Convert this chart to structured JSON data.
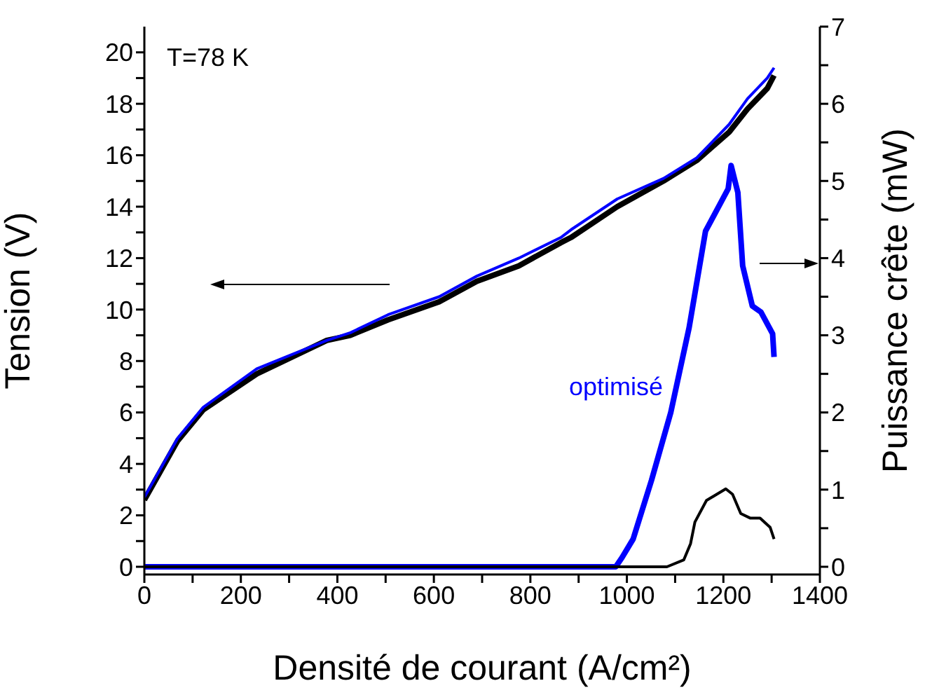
{
  "chart_data": {
    "type": "line",
    "xlabel": "Densité de courant (A/cm²)",
    "ylabel": "Tension (V)",
    "y2label": "Puissance crête (mW)",
    "annotations": [
      "T=78 K",
      "optimisé"
    ],
    "xlim": [
      0,
      1400
    ],
    "xticks": [
      0,
      {
        "value": 100,
        "label": null
      },
      200,
      {
        "value": 300,
        "label": null
      },
      400,
      {
        "value": 500,
        "label": null
      },
      600,
      {
        "value": 700,
        "label": null
      },
      800,
      {
        "value": 900,
        "label": null
      },
      1000,
      {
        "value": 1100,
        "label": null
      },
      1200,
      {
        "value": 1300,
        "label": null
      },
      1400
    ],
    "ylim": [
      -0.3,
      21
    ],
    "yticks": [
      0,
      {
        "value": 1,
        "label": null
      },
      2,
      {
        "value": 3,
        "label": null
      },
      4,
      {
        "value": 5,
        "label": null
      },
      6,
      {
        "value": 7,
        "label": null
      },
      8,
      {
        "value": 9,
        "label": null
      },
      10,
      {
        "value": 11,
        "label": null
      },
      12,
      {
        "value": 13,
        "label": null
      },
      14,
      {
        "value": 15,
        "label": null
      },
      16,
      {
        "value": 17,
        "label": null
      },
      18,
      {
        "value": 19,
        "label": null
      },
      20
    ],
    "y2lim": [
      -0.1,
      7
    ],
    "y2ticks": [
      0,
      {
        "value": 0.5,
        "label": null
      },
      1,
      {
        "value": 1.5,
        "label": null
      },
      2,
      {
        "value": 2.5,
        "label": null
      },
      3,
      {
        "value": 3.5,
        "label": null
      },
      4,
      {
        "value": 4.5,
        "label": null
      },
      5,
      {
        "value": 5.5,
        "label": null
      },
      6,
      {
        "value": 6.5,
        "label": null
      },
      7
    ],
    "legend": false,
    "grid": false,
    "marker": "none",
    "line_style": "solid",
    "series": [
      {
        "color": "#000000",
        "x": [
          0,
          69,
          122,
          233,
          378,
          427,
          505,
          611,
          689,
          776,
          863,
          884,
          980,
          1076,
          1145,
          1212,
          1250,
          1291,
          1305
        ],
        "values": [
          2.6,
          4.9,
          6.1,
          7.5,
          8.8,
          9.0,
          9.6,
          10.3,
          11.1,
          11.7,
          12.6,
          12.8,
          14.0,
          15.0,
          15.8,
          16.9,
          17.8,
          18.6,
          19.1
        ]
      },
      {
        "color": "#0000ff",
        "x": [
          0,
          69,
          122,
          233,
          378,
          427,
          505,
          611,
          689,
          776,
          863,
          884,
          980,
          1076,
          1145,
          1212,
          1250,
          1291,
          1305
        ],
        "values": [
          2.7,
          5.0,
          6.2,
          7.7,
          8.8,
          9.1,
          9.8,
          10.5,
          11.3,
          12.0,
          12.8,
          13.1,
          14.3,
          15.1,
          15.9,
          17.2,
          18.2,
          19.0,
          19.4
        ]
      },
      {
        "color": "#0000ff",
        "axis": "y2",
        "x": [
          0,
          977,
          990,
          1013,
          1051,
          1091,
          1129,
          1163,
          1210,
          1216,
          1230,
          1240,
          1260,
          1278,
          1302,
          1305
        ],
        "values": [
          0,
          0,
          0.12,
          0.36,
          1.12,
          2.0,
          3.1,
          4.35,
          4.9,
          5.2,
          4.85,
          3.9,
          3.38,
          3.3,
          3.02,
          2.72
        ]
      },
      {
        "color": "#000000",
        "axis": "y2",
        "x": [
          0,
          1083,
          1118,
          1132,
          1141,
          1165,
          1205,
          1219,
          1236,
          1256,
          1276,
          1297,
          1305
        ],
        "values": [
          0,
          0,
          0.09,
          0.3,
          0.58,
          0.86,
          1.01,
          0.94,
          0.69,
          0.63,
          0.63,
          0.51,
          0.36
        ]
      }
    ]
  }
}
